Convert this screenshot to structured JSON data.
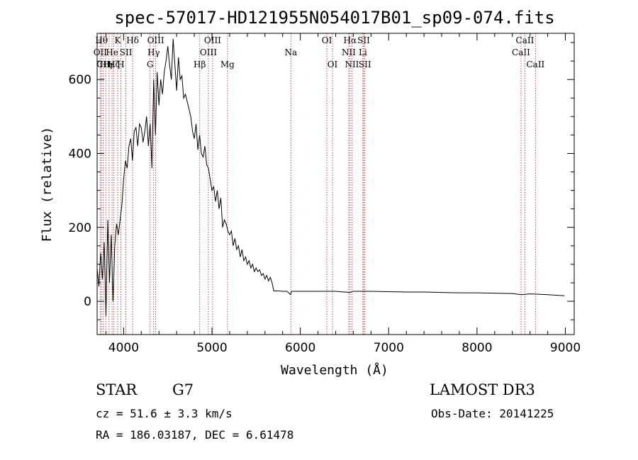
{
  "chart_data": {
    "type": "line",
    "title": "spec-57017-HD121955N054017B01_sp09-074.fits",
    "xlabel": "Wavelength (Å)",
    "ylabel": "Flux (relative)",
    "xlim": [
      3700,
      9100
    ],
    "ylim": [
      -90,
      725
    ],
    "xticks": [
      4000,
      5000,
      6000,
      7000,
      8000,
      9000
    ],
    "yticks": [
      0,
      200,
      400,
      600
    ],
    "series": [
      {
        "name": "spectrum",
        "x": [
          3700,
          3720,
          3740,
          3760,
          3780,
          3800,
          3820,
          3840,
          3860,
          3880,
          3900,
          3920,
          3940,
          3960,
          3980,
          4000,
          4020,
          4040,
          4060,
          4080,
          4100,
          4120,
          4140,
          4160,
          4180,
          4200,
          4220,
          4240,
          4260,
          4280,
          4300,
          4320,
          4340,
          4360,
          4380,
          4400,
          4420,
          4440,
          4460,
          4480,
          4500,
          4520,
          4540,
          4560,
          4580,
          4600,
          4620,
          4640,
          4660,
          4680,
          4700,
          4720,
          4740,
          4760,
          4780,
          4800,
          4820,
          4840,
          4860,
          4880,
          4900,
          4920,
          4940,
          4960,
          4980,
          5000,
          5020,
          5040,
          5060,
          5080,
          5100,
          5120,
          5140,
          5160,
          5180,
          5200,
          5220,
          5240,
          5260,
          5280,
          5300,
          5320,
          5340,
          5360,
          5380,
          5400,
          5420,
          5440,
          5460,
          5480,
          5500,
          5520,
          5540,
          5560,
          5580,
          5600,
          5620,
          5640,
          5660,
          5680,
          5700,
          5750,
          5800,
          5850,
          5890,
          5900,
          5950,
          6000,
          6200,
          6400,
          6562,
          6600,
          6800,
          7000,
          7200,
          7400,
          7600,
          7800,
          8000,
          8200,
          8400,
          8500,
          8600,
          8800,
          8990
        ],
        "values": [
          90,
          40,
          130,
          60,
          160,
          -40,
          220,
          50,
          180,
          0,
          150,
          210,
          180,
          220,
          260,
          330,
          380,
          360,
          420,
          440,
          380,
          460,
          470,
          420,
          480,
          470,
          430,
          460,
          500,
          420,
          480,
          360,
          600,
          450,
          620,
          530,
          600,
          560,
          620,
          650,
          690,
          640,
          600,
          710,
          640,
          570,
          660,
          600,
          610,
          550,
          560,
          540,
          520,
          500,
          460,
          440,
          480,
          410,
          450,
          400,
          390,
          420,
          370,
          360,
          330,
          300,
          310,
          270,
          300,
          250,
          280,
          200,
          220,
          210,
          190,
          180,
          190,
          150,
          170,
          140,
          150,
          120,
          140,
          110,
          120,
          100,
          110,
          90,
          100,
          80,
          90,
          80,
          85,
          70,
          75,
          60,
          70,
          55,
          65,
          50,
          28,
          28,
          27,
          27,
          18,
          27,
          27,
          27,
          27,
          27,
          24,
          27,
          27,
          26,
          25,
          25,
          24,
          23,
          23,
          22,
          21,
          18,
          20,
          18,
          15
        ]
      }
    ],
    "line_markers": [
      {
        "wl": 3735,
        "label": "OII",
        "row": 2
      },
      {
        "wl": 3750,
        "label": "Hθ",
        "row": 1
      },
      {
        "wl": 3770,
        "label": "CII",
        "row": 3
      },
      {
        "wl": 3798,
        "label": "Hη",
        "row": 3
      },
      {
        "wl": 3835,
        "label": "Hε",
        "row": 3
      },
      {
        "wl": 3869,
        "label": "He",
        "row": 2
      },
      {
        "wl": 3889,
        "label": "Hζ",
        "row": 3
      },
      {
        "wl": 3933,
        "label": "K",
        "row": 1
      },
      {
        "wl": 3968,
        "label": "H",
        "row": 3
      },
      {
        "wl": 4026,
        "label": "SII",
        "row": 2
      },
      {
        "wl": 4102,
        "label": "Hδ",
        "row": 1
      },
      {
        "wl": 4300,
        "label": "G",
        "row": 3
      },
      {
        "wl": 4340,
        "label": "Hγ",
        "row": 2
      },
      {
        "wl": 4363,
        "label": "OIII",
        "row": 1
      },
      {
        "wl": 4861,
        "label": "Hβ",
        "row": 3
      },
      {
        "wl": 4959,
        "label": "OIII",
        "row": 2
      },
      {
        "wl": 5007,
        "label": "OIII",
        "row": 1
      },
      {
        "wl": 5175,
        "label": "Mg",
        "row": 3
      },
      {
        "wl": 5893,
        "label": "Na",
        "row": 2
      },
      {
        "wl": 6300,
        "label": "OI",
        "row": 1
      },
      {
        "wl": 6364,
        "label": "OI",
        "row": 3
      },
      {
        "wl": 6548,
        "label": "NII",
        "row": 2
      },
      {
        "wl": 6563,
        "label": "Hα",
        "row": 1
      },
      {
        "wl": 6584,
        "label": "NII",
        "row": 3
      },
      {
        "wl": 6708,
        "label": "Li",
        "row": 2
      },
      {
        "wl": 6717,
        "label": "SII",
        "row": 1
      },
      {
        "wl": 6731,
        "label": "SII",
        "row": 3
      },
      {
        "wl": 8498,
        "label": "CaII",
        "row": 2
      },
      {
        "wl": 8542,
        "label": "CaII",
        "row": 1
      },
      {
        "wl": 8662,
        "label": "CaII",
        "row": 3
      }
    ]
  },
  "info": {
    "class": "STAR",
    "subclass": "G7",
    "survey": "LAMOST DR3",
    "cz": "cz = 51.6 ± 3.3 km/s",
    "obsdate": "Obs-Date: 20141225",
    "radec": "RA = 186.03187, DEC =   6.61478"
  }
}
